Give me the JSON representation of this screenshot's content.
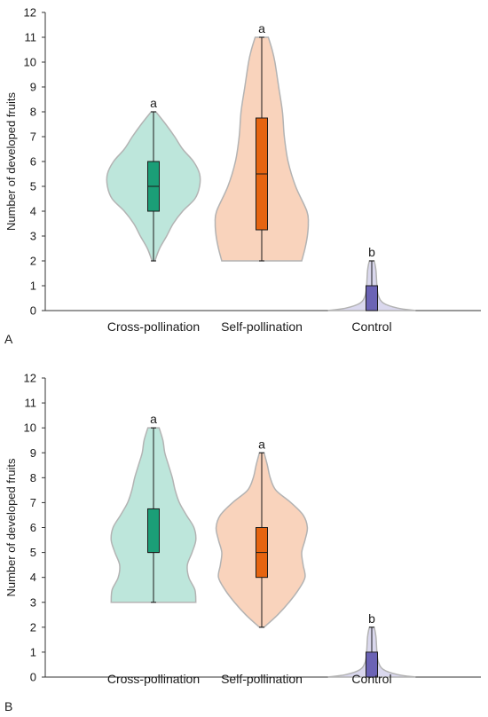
{
  "chart_data": [
    {
      "type": "violin",
      "panel_label": "A",
      "ylabel": "Number of developed fruits",
      "ylim": [
        0,
        12
      ],
      "yticks": [
        0,
        1,
        2,
        3,
        4,
        5,
        6,
        7,
        8,
        9,
        10,
        11,
        12
      ],
      "categories": [
        "Cross-pollination",
        "Self-pollination",
        "Control"
      ],
      "series": [
        {
          "category": "Cross-pollination",
          "fill": "#bde6db",
          "box_color": "#1b9e77",
          "whisker_low": 2,
          "q1": 4,
          "median": 5,
          "q3": 6,
          "whisker_high": 8,
          "sig": "a",
          "density": [
            [
              2,
              0.03
            ],
            [
              2.5,
              0.13
            ],
            [
              3,
              0.28
            ],
            [
              3.5,
              0.42
            ],
            [
              4,
              0.62
            ],
            [
              4.5,
              0.88
            ],
            [
              5,
              0.98
            ],
            [
              5.5,
              0.98
            ],
            [
              6,
              0.85
            ],
            [
              6.5,
              0.62
            ],
            [
              7,
              0.45
            ],
            [
              7.5,
              0.26
            ],
            [
              8,
              0.05
            ]
          ]
        },
        {
          "category": "Self-pollination",
          "fill": "#f9d3bc",
          "box_color": "#e66410",
          "whisker_low": 2,
          "q1": 3.25,
          "median": 5.5,
          "q3": 7.75,
          "whisker_high": 11,
          "sig": "a",
          "density": [
            [
              2,
              0.85
            ],
            [
              2.5,
              0.92
            ],
            [
              3,
              0.97
            ],
            [
              3.5,
              0.99
            ],
            [
              4,
              0.96
            ],
            [
              5,
              0.72
            ],
            [
              6,
              0.56
            ],
            [
              7,
              0.48
            ],
            [
              8,
              0.44
            ],
            [
              9,
              0.36
            ],
            [
              10,
              0.28
            ],
            [
              10.5,
              0.22
            ],
            [
              11,
              0.14
            ]
          ]
        },
        {
          "category": "Control",
          "fill": "#dad8ee",
          "box_color": "#6b63b5",
          "whisker_low": 0,
          "q1": 0,
          "median": 0,
          "q3": 1,
          "whisker_high": 2,
          "sig": "b",
          "density": [
            [
              0,
              0.93
            ],
            [
              0.1,
              0.55
            ],
            [
              0.3,
              0.25
            ],
            [
              0.6,
              0.14
            ],
            [
              1,
              0.11
            ],
            [
              1.3,
              0.1
            ],
            [
              1.6,
              0.09
            ],
            [
              1.85,
              0.07
            ],
            [
              2,
              0.05
            ]
          ]
        }
      ]
    },
    {
      "type": "violin",
      "panel_label": "B",
      "ylabel": "Number of developed fruits",
      "ylim": [
        0,
        12
      ],
      "yticks": [
        0,
        1,
        2,
        3,
        4,
        5,
        6,
        7,
        8,
        9,
        10,
        11,
        12
      ],
      "categories": [
        "Cross-pollination",
        "Self-pollination",
        "Control"
      ],
      "series": [
        {
          "category": "Cross-pollination",
          "fill": "#bde6db",
          "box_color": "#1b9e77",
          "whisker_low": 3,
          "q1": 5,
          "median": 5,
          "q3": 6.75,
          "whisker_high": 10,
          "sig": "a",
          "density": [
            [
              3,
              0.9
            ],
            [
              3.5,
              0.88
            ],
            [
              4,
              0.75
            ],
            [
              4.5,
              0.72
            ],
            [
              5,
              0.82
            ],
            [
              5.5,
              0.9
            ],
            [
              6,
              0.86
            ],
            [
              6.5,
              0.7
            ],
            [
              7,
              0.55
            ],
            [
              7.5,
              0.46
            ],
            [
              8,
              0.4
            ],
            [
              8.5,
              0.32
            ],
            [
              9,
              0.24
            ],
            [
              9.5,
              0.2
            ],
            [
              10,
              0.12
            ]
          ]
        },
        {
          "category": "Self-pollination",
          "fill": "#f9d3bc",
          "box_color": "#e66410",
          "whisker_low": 2,
          "q1": 4,
          "median": 5,
          "q3": 6,
          "whisker_high": 9,
          "sig": "a",
          "density": [
            [
              2,
              0.05
            ],
            [
              2.5,
              0.34
            ],
            [
              3,
              0.58
            ],
            [
              3.5,
              0.78
            ],
            [
              4,
              0.92
            ],
            [
              4.5,
              0.88
            ],
            [
              5,
              0.85
            ],
            [
              5.5,
              0.92
            ],
            [
              6,
              0.97
            ],
            [
              6.5,
              0.88
            ],
            [
              7,
              0.62
            ],
            [
              7.5,
              0.3
            ],
            [
              8,
              0.18
            ],
            [
              8.5,
              0.12
            ],
            [
              9,
              0.05
            ]
          ]
        },
        {
          "category": "Control",
          "fill": "#dad8ee",
          "box_color": "#6b63b5",
          "whisker_low": 0,
          "q1": 0,
          "median": 0,
          "q3": 1,
          "whisker_high": 2,
          "sig": "b",
          "density": [
            [
              0,
              0.93
            ],
            [
              0.1,
              0.55
            ],
            [
              0.3,
              0.25
            ],
            [
              0.6,
              0.14
            ],
            [
              1,
              0.11
            ],
            [
              1.3,
              0.1
            ],
            [
              1.6,
              0.09
            ],
            [
              1.85,
              0.07
            ],
            [
              2,
              0.05
            ]
          ]
        }
      ]
    }
  ]
}
